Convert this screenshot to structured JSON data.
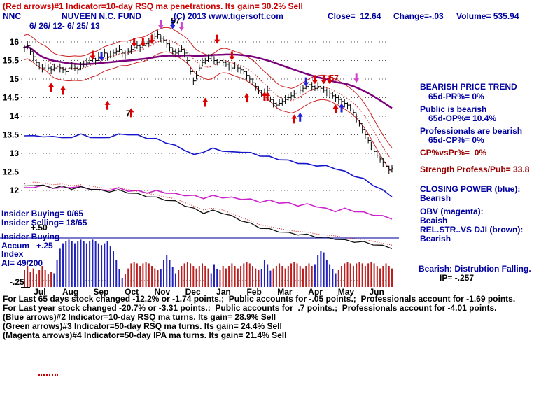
{
  "header": {
    "indicator_line": "(Red arrows)#1 Indicator=10-day RSQ ma penetrations. Its gain= 30.2% Sell",
    "ticker": "NNC",
    "fund_name": "NUVEEN N.C. FUND",
    "copyright": "(C) 2013 www.tigersoft.com",
    "close": "Close=  12.64",
    "change": "Change=-.03",
    "volume": "Volume= 535.94",
    "date_range": "6/ 26/ 12- 6/ 25/ 13"
  },
  "right_panel": {
    "trend_title": "BEARISH PRICE TREND",
    "pr": "65d-PR%= 0%",
    "public": "Public is bearish",
    "op": "65d-OP%= 10.4%",
    "professionals": "Professionals are bearish",
    "cp": "65d-CP%= 0%",
    "cp_vs_pr": "CP%vsPr%=  0%",
    "strength": "Strength Profess/Pub= 33.8",
    "closing_power_title": "CLOSING POWER (blue):",
    "closing_power_state": "Bearish",
    "obv_title": "OBV (magenta):",
    "obv_state": "Beaish",
    "relstr_title": "REL.STR..VS DJI (brown):",
    "relstr_state": "Bearish",
    "distribution": "Bearish: Distrubtion Falling.",
    "ip": "IP= -.257"
  },
  "left_panel": {
    "insider_buying": "Insider Buying= 0/65",
    "insider_selling": "Insider Selling= 18/65",
    "plus_50": "+.50",
    "accum_line1": "Insider Buying",
    "accum_line2": "Accum   +.25",
    "accum_line3": "Index",
    "accum_line4": "AI= 49/200",
    "minus_25": "-.25"
  },
  "footer": {
    "lines": [
      "For Last 65 days stock changed -12.2% or -1.74 points.;  Public accounts for -.05 points.;  Professionals account for -1.69 points.",
      "For Last year stock changed -20.7% or -3.31 points.:  Public accounts for  .7 points.;  Professionals account for -4.01 points.",
      "(Blue arrows)#2 Indicator=10-day RSQ ma turns. Its gain= 28.9% Sell",
      "(Green arrows)#3 Indicator=50-day RSQ ma turns. Its gain= 24.4% Sell",
      "(Magenta arrows)#4 Indicator=50-day IPA ma turns. Its gain= 21.4% Sell"
    ]
  },
  "chart_data": {
    "type": "ohlc+indicators",
    "title": "NNC NUVEEN N.C. FUND daily price with bands, Closing Power, OBV, Rel.Str. vs DJI and Accumulation Index",
    "ylim": [
      12,
      16.5
    ],
    "y_ticks": [
      {
        "label": "16",
        "value": 16
      },
      {
        "label": "15.5",
        "value": 15.5
      },
      {
        "label": "15",
        "value": 15
      },
      {
        "label": "14.5",
        "value": 14.5
      },
      {
        "label": "14",
        "value": 14
      },
      {
        "label": "13.5",
        "value": 13.5
      },
      {
        "label": "13",
        "value": 13
      },
      {
        "label": "12.5",
        "value": 12.5
      },
      {
        "label": "12",
        "value": 12
      }
    ],
    "x_labels": [
      "Jul",
      "Aug",
      "Sep",
      "Oct",
      "Nov",
      "Dec",
      "Jan",
      "Feb",
      "Mar",
      "Apr",
      "May",
      "Jun"
    ],
    "closes": [
      15.85,
      15.9,
      15.75,
      15.6,
      15.45,
      15.35,
      15.3,
      15.35,
      15.3,
      15.25,
      15.3,
      15.35,
      15.3,
      15.25,
      15.2,
      15.3,
      15.35,
      15.3,
      15.25,
      15.35,
      15.4,
      15.45,
      15.5,
      15.55,
      15.5,
      15.6,
      15.65,
      15.7,
      15.6,
      15.65,
      15.7,
      15.75,
      15.8,
      15.7,
      15.65,
      15.75,
      15.8,
      15.85,
      15.9,
      15.85,
      15.9,
      15.95,
      16.0,
      16.1,
      16.15,
      16.2,
      16.1,
      16.05,
      15.95,
      15.85,
      15.75,
      15.7,
      15.75,
      15.8,
      15.7,
      15.5,
      15.2,
      14.95,
      15.1,
      15.3,
      15.45,
      15.5,
      15.55,
      15.6,
      15.5,
      15.45,
      15.5,
      15.45,
      15.4,
      15.35,
      15.3,
      15.35,
      15.3,
      15.25,
      15.2,
      15.1,
      15.0,
      14.9,
      14.8,
      14.7,
      14.6,
      14.65,
      14.7,
      14.45,
      14.35,
      14.3,
      14.35,
      14.4,
      14.45,
      14.5,
      14.55,
      14.6,
      14.65,
      14.7,
      14.75,
      14.8,
      14.85,
      14.8,
      14.75,
      14.8,
      14.75,
      14.7,
      14.65,
      14.6,
      14.55,
      14.5,
      14.45,
      14.4,
      14.35,
      14.3,
      14.2,
      14.1,
      13.95,
      13.8,
      13.65,
      13.5,
      13.35,
      13.2,
      13.05,
      12.95,
      12.85,
      12.75,
      12.65,
      12.55,
      12.6
    ],
    "closing_power": [
      13.45,
      13.5,
      13.42,
      13.48,
      13.4,
      13.45,
      13.5,
      13.45,
      13.4,
      13.45,
      13.5,
      13.52,
      13.48,
      13.42,
      13.38,
      13.3,
      13.2,
      13.1,
      12.95,
      13.05,
      13.12,
      13.08,
      13.02,
      13.05,
      13.0,
      12.95,
      12.9,
      12.85,
      12.8,
      12.75,
      12.7,
      12.68,
      12.65,
      12.6,
      12.5,
      12.4,
      12.3,
      12.15,
      12.0,
      11.85
    ],
    "obv": [
      12.05,
      12.1,
      12.12,
      12.08,
      12.05,
      12.1,
      12.08,
      12.05,
      12.0,
      12.02,
      12.05,
      12.0,
      11.98,
      11.95,
      11.98,
      11.95,
      11.9,
      11.88,
      11.85,
      11.8,
      11.85,
      11.82,
      11.8,
      11.78,
      11.75,
      11.7,
      11.72,
      11.68,
      11.65,
      11.6,
      11.62,
      11.58,
      11.5,
      11.45,
      11.5,
      11.45,
      11.4,
      11.35,
      11.3,
      11.25
    ],
    "rel_strength": [
      12.1,
      12.15,
      12.12,
      12.08,
      12.1,
      12.05,
      12.08,
      12.05,
      12.0,
      11.98,
      12.0,
      11.95,
      11.9,
      11.85,
      11.8,
      11.75,
      11.7,
      11.6,
      11.5,
      11.4,
      11.45,
      11.4,
      11.3,
      11.2,
      11.1,
      11.0,
      10.95,
      10.9,
      10.85,
      10.82,
      10.8,
      10.75,
      10.72,
      10.7,
      10.65,
      10.62,
      10.6,
      10.55,
      10.5,
      10.45
    ],
    "accum": [
      -0.2,
      -0.25,
      -0.18,
      -0.22,
      -0.15,
      -0.2,
      -0.25,
      -0.2,
      -0.15,
      -0.18,
      0.15,
      0.3,
      0.42,
      0.48,
      0.5,
      0.52,
      0.5,
      0.48,
      0.5,
      0.52,
      0.5,
      0.48,
      0.5,
      0.52,
      0.5,
      0.48,
      0.46,
      0.48,
      0.5,
      0.45,
      0.4,
      0.3,
      0.2,
      0.1,
      -0.15,
      -0.22,
      -0.28,
      -0.3,
      -0.28,
      -0.25,
      -0.28,
      -0.3,
      -0.28,
      -0.25,
      -0.22,
      -0.2,
      0.2,
      0.3,
      0.35,
      0.3,
      0.22,
      0.15,
      -0.2,
      -0.25,
      -0.28,
      -0.3,
      -0.28,
      -0.25,
      -0.22,
      -0.25,
      -0.28,
      -0.25,
      -0.22,
      0.15,
      0.25,
      0.2,
      -0.2,
      -0.25,
      -0.22,
      -0.25,
      -0.28,
      -0.25,
      -0.22,
      -0.25,
      -0.28,
      -0.3,
      -0.28,
      -0.25,
      -0.22,
      -0.2,
      0.2,
      0.3,
      0.25,
      0.18,
      -0.22,
      -0.25,
      -0.28,
      -0.25,
      -0.22,
      -0.25,
      -0.28,
      -0.3,
      -0.28,
      -0.25,
      -0.22,
      -0.25,
      -0.28,
      -0.25,
      0.25,
      0.35,
      0.4,
      0.38,
      0.3,
      0.25,
      0.2,
      0.15,
      -0.2,
      -0.25,
      -0.28,
      -0.3,
      -0.28,
      -0.25,
      -0.28,
      -0.3,
      -0.28,
      -0.25,
      -0.28,
      -0.3,
      -0.28,
      -0.25,
      -0.22,
      -0.25,
      -0.28,
      -0.25,
      -0.22
    ],
    "arrows": [
      {
        "i": 9,
        "p": 14.9,
        "d": "up",
        "c": "red"
      },
      {
        "i": 13,
        "p": 14.82,
        "d": "up",
        "c": "red"
      },
      {
        "i": 23,
        "p": 15.52,
        "d": "down",
        "c": "red"
      },
      {
        "i": 26,
        "p": 15.48,
        "d": "down",
        "c": "blue"
      },
      {
        "i": 28,
        "p": 14.42,
        "d": "up",
        "c": "red"
      },
      {
        "i": 36,
        "p": 14.22,
        "d": "up",
        "c": "red"
      },
      {
        "i": 37,
        "p": 15.86,
        "d": "down",
        "c": "red"
      },
      {
        "i": 40,
        "p": 15.86,
        "d": "down",
        "c": "red"
      },
      {
        "i": 43,
        "p": 15.94,
        "d": "down",
        "c": "red"
      },
      {
        "i": 46,
        "p": 16.35,
        "d": "down",
        "c": "magenta"
      },
      {
        "i": 50,
        "p": 16.35,
        "d": "down",
        "c": "blue"
      },
      {
        "i": 53,
        "p": 16.3,
        "d": "down",
        "c": "magenta"
      },
      {
        "i": 61,
        "p": 14.5,
        "d": "up",
        "c": "red"
      },
      {
        "i": 65,
        "p": 15.95,
        "d": "down",
        "c": "red"
      },
      {
        "i": 70,
        "p": 15.5,
        "d": "down",
        "c": "red"
      },
      {
        "i": 75,
        "p": 14.62,
        "d": "up",
        "c": "red"
      },
      {
        "i": 81,
        "p": 14.66,
        "d": "up",
        "c": "red"
      },
      {
        "i": 82,
        "p": 14.66,
        "d": "up",
        "c": "red"
      },
      {
        "i": 91,
        "p": 14.05,
        "d": "up",
        "c": "red"
      },
      {
        "i": 93,
        "p": 14.1,
        "d": "up",
        "c": "blue"
      },
      {
        "i": 95,
        "p": 14.8,
        "d": "down",
        "c": "blue"
      },
      {
        "i": 98,
        "p": 14.86,
        "d": "down",
        "c": "red"
      },
      {
        "i": 101,
        "p": 14.86,
        "d": "down",
        "c": "red"
      },
      {
        "i": 103,
        "p": 14.86,
        "d": "down",
        "c": "red"
      },
      {
        "i": 105,
        "p": 14.32,
        "d": "up",
        "c": "red"
      },
      {
        "i": 107,
        "p": 14.35,
        "d": "up",
        "c": "blue"
      },
      {
        "i": 112,
        "p": 14.9,
        "d": "down",
        "c": "magenta"
      }
    ],
    "annotations": [
      {
        "i": 51,
        "p": 16.5,
        "text": "57",
        "color": "#000000"
      },
      {
        "i": 35,
        "p": 14.0,
        "text": "7",
        "color": "#000000"
      },
      {
        "i": 104,
        "p": 14.95,
        "text": "-57",
        "color": "#cc0000"
      }
    ],
    "colors": {
      "band": "#cc2222",
      "ma": "#7a007a",
      "price": "#000000",
      "closing_power": "#1414cc",
      "obv": "#cc22cc",
      "rel_strength": "#111111",
      "rel_companion": "#cc2222",
      "accum_pos": "#2020bb",
      "accum_neg": "#bb2020",
      "grid": "#555555",
      "pane_line": "#2a2ab0"
    }
  }
}
